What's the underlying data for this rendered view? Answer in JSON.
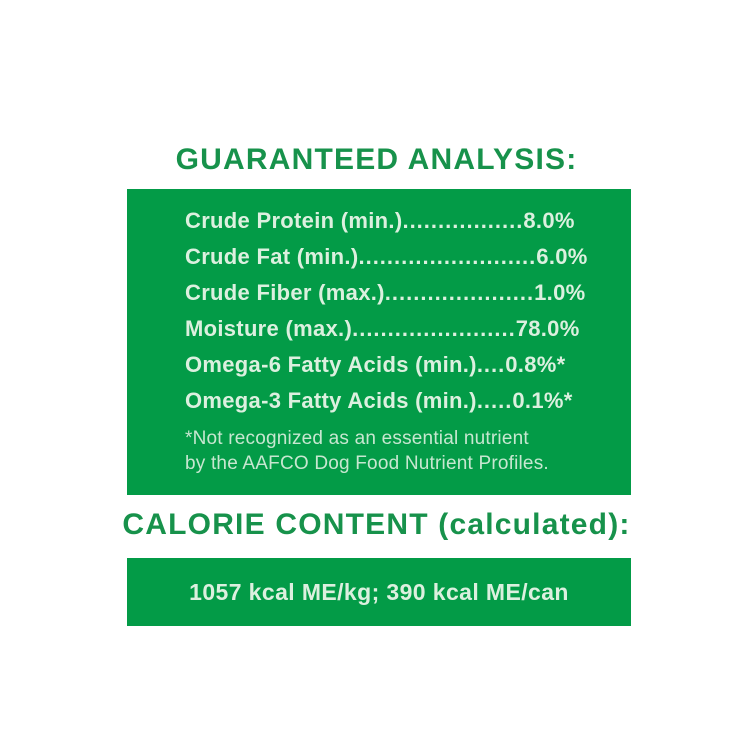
{
  "colors": {
    "background": "#ffffff",
    "heading_green": "#17924B",
    "panel_green": "#039B47",
    "panel_text": "#DCF0DF",
    "footnote_text": "#C7E7D0"
  },
  "guaranteed_analysis": {
    "heading": "GUARANTEED ANALYSIS:",
    "rows": [
      {
        "label": "Crude Protein (min.)",
        "dots": ".................",
        "value": "8.0%"
      },
      {
        "label": "Crude Fat (min.)",
        "dots": ".........................",
        "value": "6.0%"
      },
      {
        "label": "Crude Fiber (max.)",
        "dots": ".....................",
        "value": "1.0%"
      },
      {
        "label": "Moisture (max.)",
        "dots": ".......................",
        "value": "78.0%"
      },
      {
        "label": "Omega-6 Fatty Acids (min.)",
        "dots": "....",
        "value": "0.8%*"
      },
      {
        "label": "Omega-3 Fatty Acids (min.)",
        "dots": ".....",
        "value": "0.1%*"
      }
    ],
    "footnote_line1": "*Not recognized as an essential nutrient",
    "footnote_line2": "by the AAFCO Dog Food Nutrient Profiles."
  },
  "calorie_content": {
    "heading": "CALORIE CONTENT (calculated):",
    "value": "1057 kcal ME/kg; 390 kcal ME/can"
  }
}
